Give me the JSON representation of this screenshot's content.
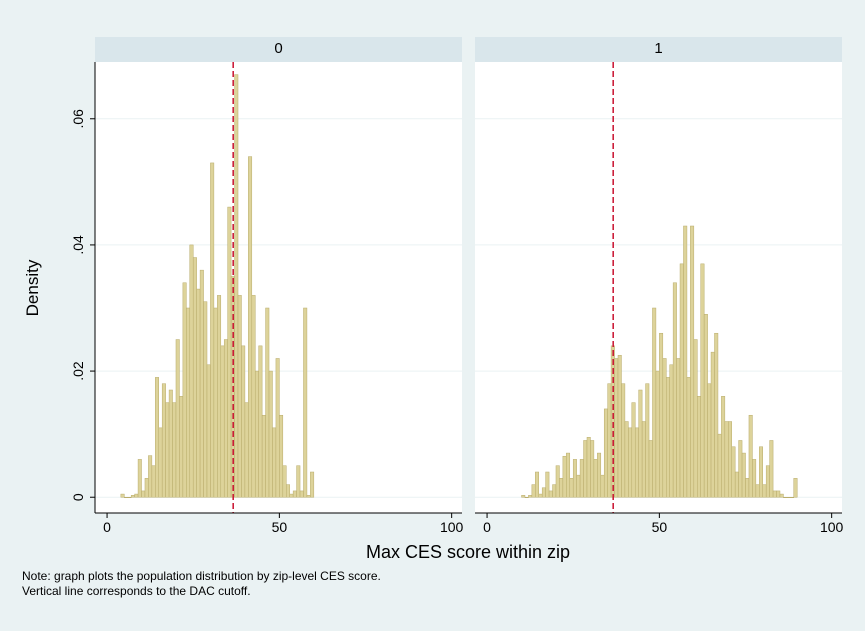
{
  "chart_data": [
    {
      "type": "histogram",
      "title": "0",
      "bins": [
        4,
        5,
        6,
        7,
        8,
        9,
        10,
        11,
        12,
        13,
        14,
        15,
        16,
        17,
        18,
        19,
        20,
        21,
        22,
        23,
        24,
        25,
        26,
        27,
        28,
        29,
        30,
        31,
        32,
        33,
        34,
        35,
        36,
        37,
        38,
        39,
        40,
        41,
        42,
        43,
        44,
        45,
        46,
        47,
        48,
        49,
        50,
        51,
        52,
        53,
        54,
        55,
        56,
        57,
        58,
        59,
        60
      ],
      "values": [
        0.0005,
        0,
        0,
        0.0003,
        0.0005,
        0.006,
        0.001,
        0.003,
        0.0066,
        0.005,
        0.019,
        0.011,
        0.018,
        0.015,
        0.017,
        0.015,
        0.025,
        0.016,
        0.034,
        0.03,
        0.04,
        0.038,
        0.033,
        0.036,
        0.031,
        0.021,
        0.053,
        0.03,
        0.032,
        0.024,
        0.025,
        0.046,
        0.035,
        0.067,
        0.032,
        0.024,
        0.015,
        0.054,
        0.032,
        0.02,
        0.024,
        0.013,
        0.03,
        0.02,
        0.011,
        0.022,
        0.013,
        0.005,
        0.002,
        0.0005,
        0.001,
        0.005,
        0.001,
        0.03,
        0.0003,
        0.004
      ],
      "color": "#ddd39a",
      "reference_line": 36.6,
      "reference_color": "#c8102e",
      "xlim": [
        -3.5,
        103
      ],
      "xticks": [
        0,
        50,
        100
      ],
      "ylim": [
        -0.0025,
        0.069
      ],
      "yticks": [
        0,
        {
          "value": 0.02,
          "label": ".02"
        },
        {
          "value": 0.04,
          "label": ".04"
        },
        {
          "value": 0.06,
          "label": ".06"
        }
      ],
      "ytick_labels": true,
      "grid": true
    },
    {
      "type": "histogram",
      "title": "1",
      "bins": [
        10,
        11,
        12,
        13,
        14,
        15,
        16,
        17,
        18,
        19,
        20,
        21,
        22,
        23,
        24,
        25,
        26,
        27,
        28,
        29,
        30,
        31,
        32,
        33,
        34,
        35,
        36,
        37,
        38,
        39,
        40,
        41,
        42,
        43,
        44,
        45,
        46,
        47,
        48,
        49,
        50,
        51,
        52,
        53,
        54,
        55,
        56,
        57,
        58,
        59,
        60,
        61,
        62,
        63,
        64,
        65,
        66,
        67,
        68,
        69,
        70,
        71,
        72,
        73,
        74,
        75,
        76,
        77,
        78,
        79,
        80,
        81,
        82,
        83,
        84,
        85,
        86,
        87,
        88,
        89,
        90
      ],
      "values": [
        0.0003,
        0,
        0.0003,
        0.002,
        0.004,
        0.0005,
        0.0015,
        0.004,
        0.001,
        0.002,
        0.005,
        0.003,
        0.0065,
        0.007,
        0.003,
        0.006,
        0.0035,
        0.006,
        0.009,
        0.0095,
        0.009,
        0.006,
        0.007,
        0.0035,
        0.014,
        0.018,
        0.024,
        0.022,
        0.0225,
        0.018,
        0.012,
        0.011,
        0.015,
        0.011,
        0.017,
        0.012,
        0.018,
        0.009,
        0.03,
        0.02,
        0.026,
        0.022,
        0.019,
        0.021,
        0.034,
        0.022,
        0.037,
        0.043,
        0.019,
        0.043,
        0.025,
        0.016,
        0.037,
        0.029,
        0.018,
        0.023,
        0.026,
        0.01,
        0.016,
        0.012,
        0.012,
        0.008,
        0.004,
        0.009,
        0.007,
        0.003,
        0.013,
        0.006,
        0.002,
        0.008,
        0.002,
        0.005,
        0.009,
        0.001,
        0.001,
        0.0005,
        0,
        0,
        0,
        0.003
      ],
      "color": "#ddd39a",
      "reference_line": 36.6,
      "reference_color": "#c8102e",
      "xlim": [
        -3.5,
        103
      ],
      "xticks": [
        0,
        50,
        100
      ],
      "ylim": [
        -0.0025,
        0.069
      ],
      "yticks": [
        0,
        {
          "value": 0.02,
          "label": ".02"
        },
        {
          "value": 0.04,
          "label": ".04"
        },
        {
          "value": 0.06,
          "label": ".06"
        }
      ],
      "ytick_labels": false,
      "grid": true
    }
  ],
  "xlabel": "Max CES score within zip",
  "ylabel": "Density",
  "note": [
    "Note: graph plots the population distribution by zip-level CES score.",
    "Vertical line corresponds to the DAC cutoff."
  ]
}
